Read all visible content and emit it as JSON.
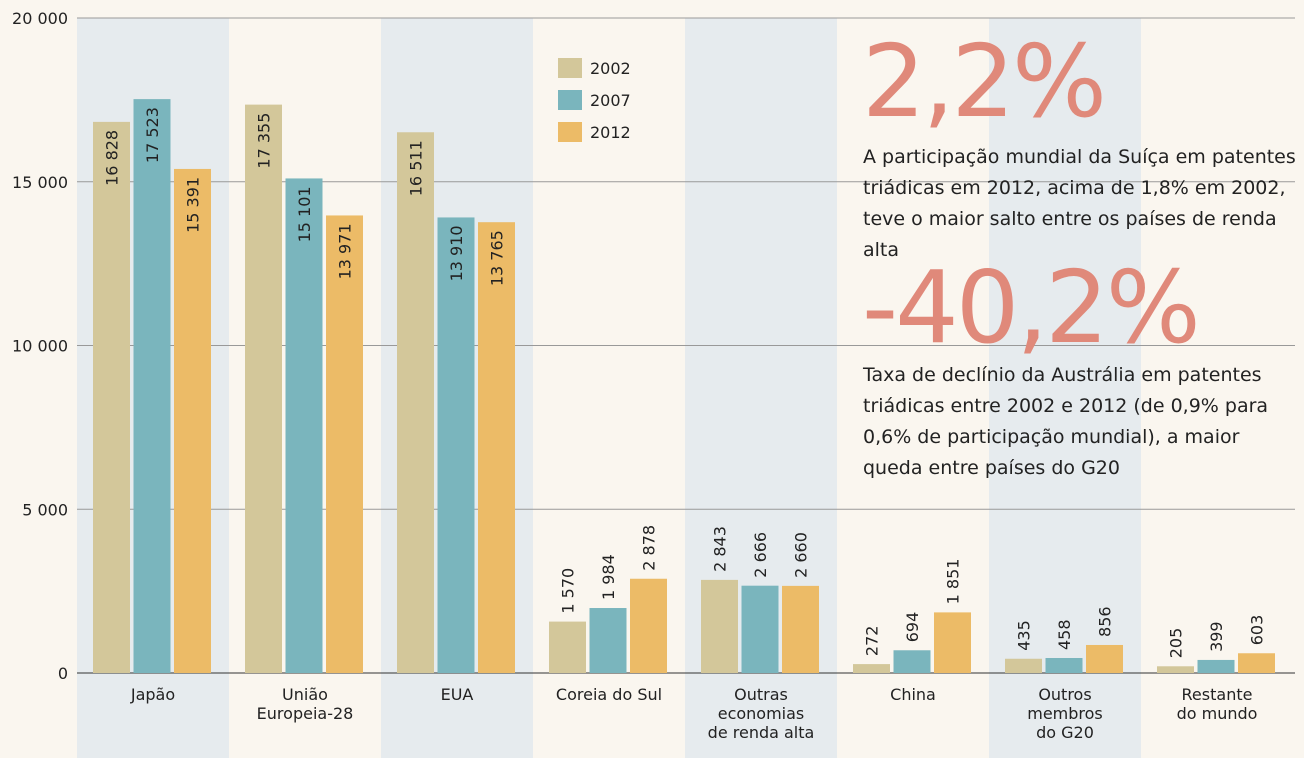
{
  "chart_data": {
    "type": "bar",
    "categories": [
      "Japão",
      "União\nEuropeia-28",
      "EUA",
      "Coreia do Sul",
      "Outras\neconomias\nde renda alta",
      "China",
      "Outros\nmembros\ndo G20",
      "Restante\ndo mundo"
    ],
    "series": [
      {
        "name": "2002",
        "color": "#d3c79a",
        "values": [
          16828,
          17355,
          16511,
          1570,
          2843,
          272,
          435,
          205
        ],
        "value_labels": [
          "16 828",
          "17 355",
          "16 511",
          "1 570",
          "2 843",
          "272",
          "435",
          "205"
        ]
      },
      {
        "name": "2007",
        "color": "#7ab5bd",
        "values": [
          17523,
          15101,
          13910,
          1984,
          2666,
          694,
          458,
          399
        ],
        "value_labels": [
          "17 523",
          "15 101",
          "13 910",
          "1 984",
          "2 666",
          "694",
          "458",
          "399"
        ]
      },
      {
        "name": "2012",
        "color": "#ecbb67",
        "values": [
          15391,
          13971,
          13765,
          2878,
          2660,
          1851,
          856,
          603
        ],
        "value_labels": [
          "15 391",
          "13 971",
          "13 765",
          "2 878",
          "2 660",
          "1 851",
          "856",
          "603"
        ]
      }
    ],
    "ylim": [
      0,
      20000
    ],
    "yticks": [
      0,
      {
        "value": 5000,
        "label": "5 000"
      },
      {
        "value": 10000,
        "label": "10 000"
      },
      {
        "value": 15000,
        "label": "15 000"
      },
      {
        "value": 20000,
        "label": "20 000"
      }
    ],
    "grid": true,
    "annotations": [
      {
        "headline": "2,2%",
        "text": "A participação mundial da Suíça em patentes\ntriádicas em 2012, acima de 1,8% em 2002,\nteve o maior salto entre os países de renda alta"
      },
      {
        "headline": "-40,2%",
        "text": "Taxa de declínio da Austrália em patentes\ntriádicas entre 2002 e 2012 (de 0,9% para\n0,6% de participação mundial), a maior\nqueda entre países do G20"
      }
    ]
  }
}
